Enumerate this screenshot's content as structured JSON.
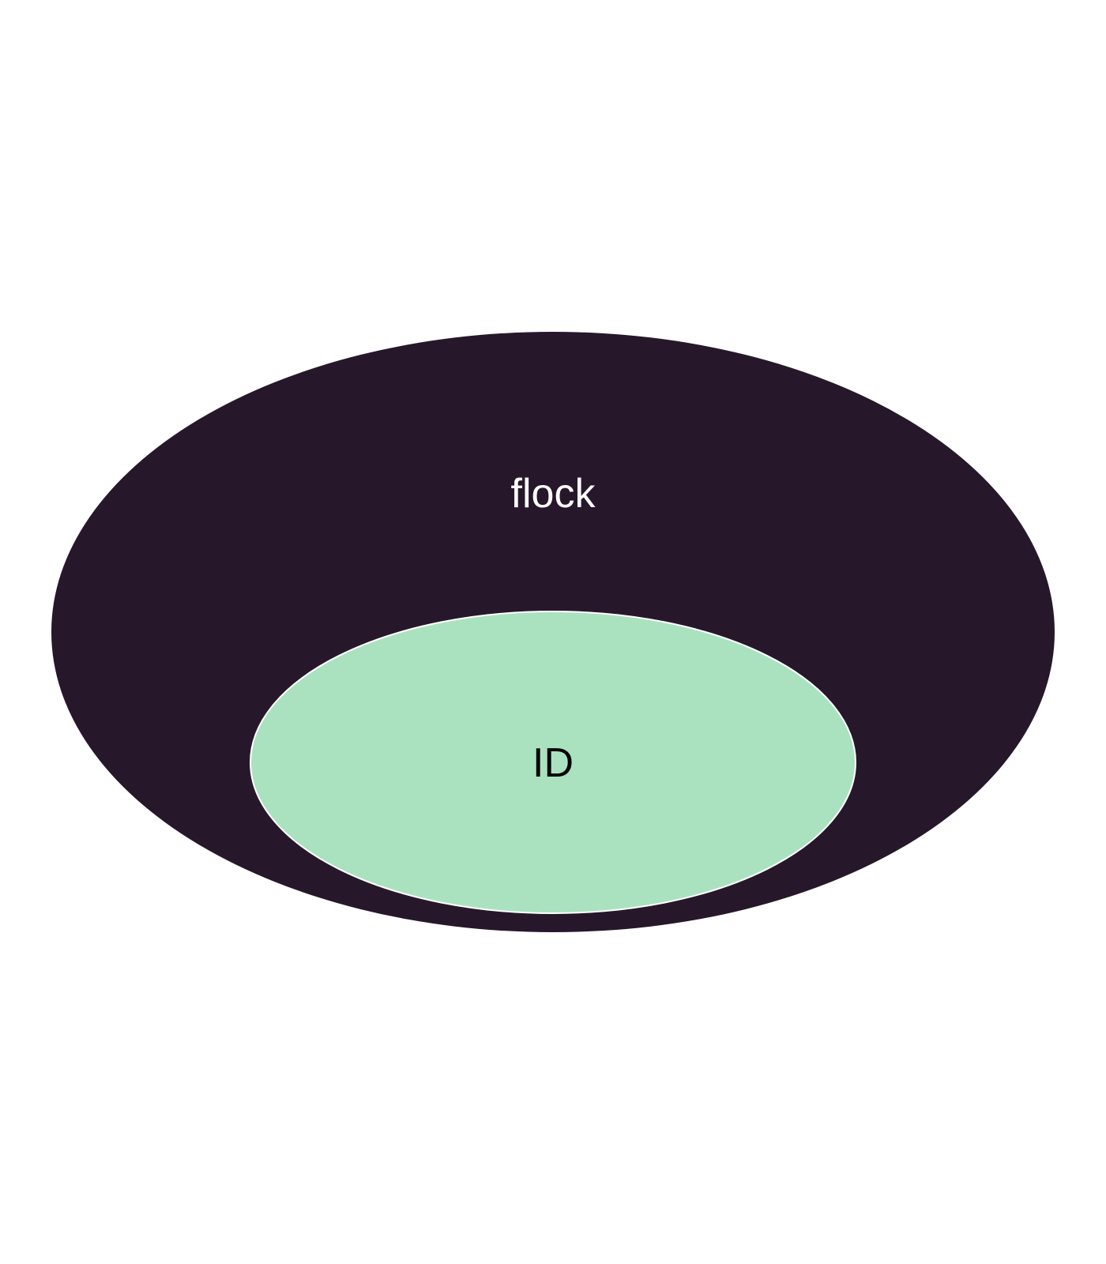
{
  "diagram": {
    "outer": {
      "label": "flock",
      "fill": "#26182a",
      "text_color": "#ffffff"
    },
    "inner": {
      "label": "ID",
      "fill": "#aae2c0",
      "stroke": "#ffffff",
      "text_color": "#000000"
    }
  }
}
